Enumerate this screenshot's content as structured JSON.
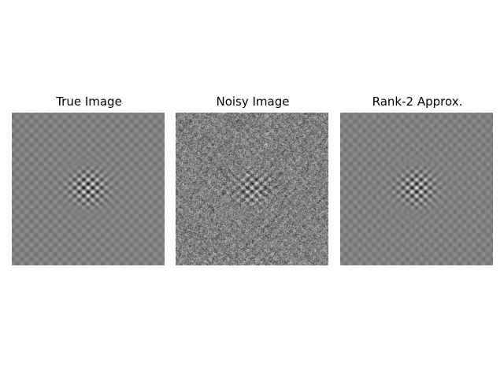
{
  "figure": {
    "panels": [
      {
        "title": "True Image",
        "kind": "true"
      },
      {
        "title": "Noisy Image",
        "kind": "noisy"
      },
      {
        "title": "Rank-2 Approx.",
        "kind": "rank2"
      }
    ],
    "colormap": "gray"
  }
}
